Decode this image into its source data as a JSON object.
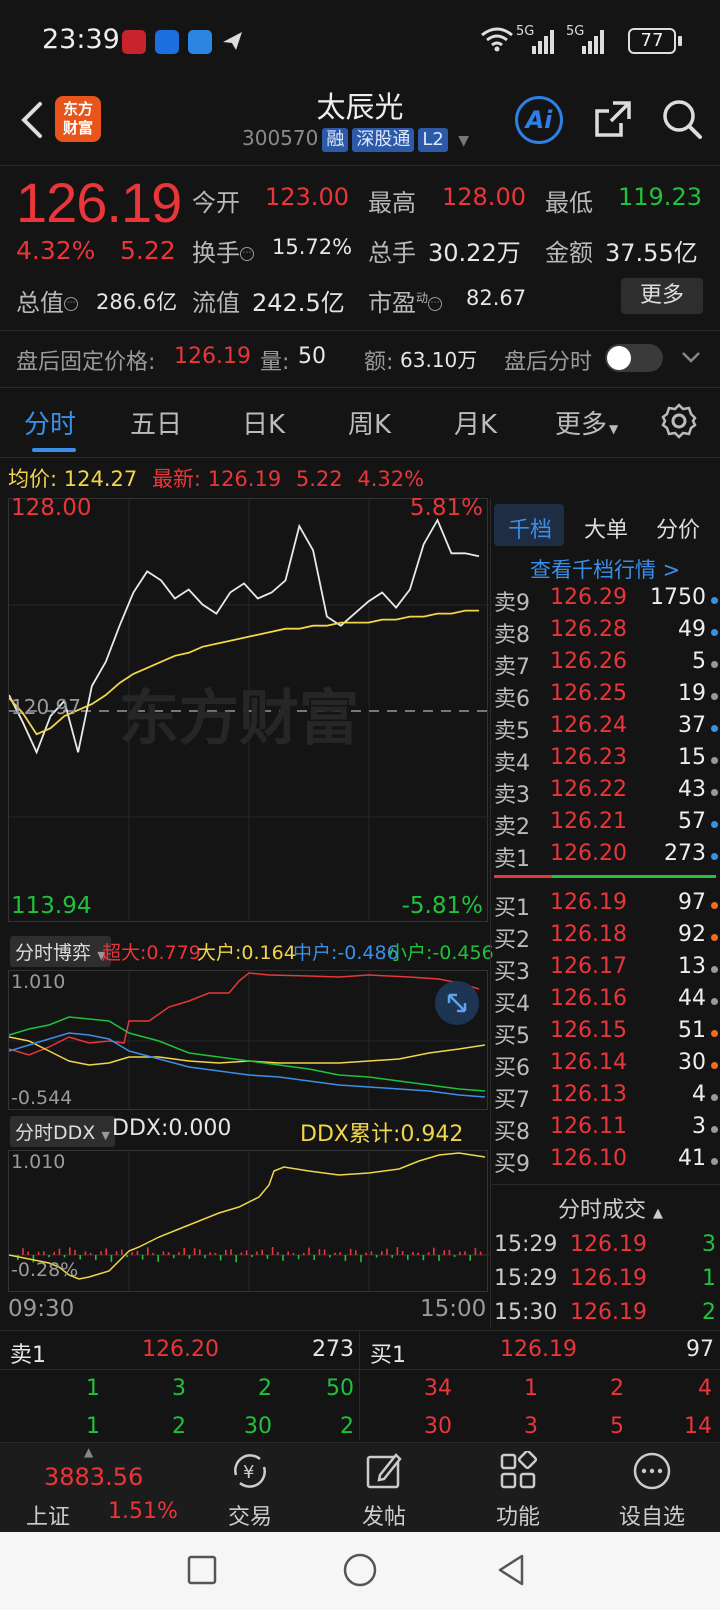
{
  "status_bar": {
    "time": "23:39",
    "battery": "77",
    "net1": "5G",
    "net2": "5G"
  },
  "header": {
    "logo_line1": "东方",
    "logo_line2": "财富",
    "name": "太辰光",
    "code": "300570",
    "tags": [
      "融",
      "深股通",
      "L2"
    ]
  },
  "quote": {
    "price": "126.19",
    "change_pct": "4.32%",
    "change_amt": "5.22",
    "open_label": "今开",
    "open": "123.00",
    "high_label": "最高",
    "high": "128.00",
    "low_label": "最低",
    "low": "119.23",
    "turnover_label": "换手",
    "turnover": "15.72%",
    "volume_label": "总手",
    "volume": "30.22万",
    "amount_label": "金额",
    "amount": "37.55亿",
    "mktcap_label": "总值",
    "mktcap": "286.6亿",
    "float_label": "流值",
    "float": "242.5亿",
    "pe_label": "市盈",
    "pe_sup": "动",
    "pe": "82.67",
    "more": "更多"
  },
  "after_hours": {
    "label": "盘后固定价格:",
    "price": "126.19",
    "vol_label": "量:",
    "vol": "50",
    "amt_label": "额:",
    "amt": "63.10万",
    "timeshare_label": "盘后分时"
  },
  "tabs": [
    "分时",
    "五日",
    "日K",
    "周K",
    "月K",
    "更多"
  ],
  "info_line": {
    "avg_label": "均价:",
    "avg": "124.27",
    "latest_label": "最新:",
    "latest": "126.19",
    "chg": "5.22",
    "pct": "4.32%"
  },
  "chart": {
    "top_price": "128.00",
    "top_pct": "5.81%",
    "mid_price": "120.97",
    "bottom_price": "113.94",
    "bottom_pct": "-5.81%",
    "watermark": "东方财富",
    "time_start": "09:30",
    "time_end": "15:00"
  },
  "chart_data": {
    "type": "line",
    "ylim": [
      113.94,
      128.0
    ],
    "series": [
      {
        "values": [
          121.5,
          120.6,
          119.6,
          120.8,
          121.3,
          119.6,
          121.8,
          122.6,
          123.8,
          124.9,
          125.6,
          125.3,
          124.7,
          125.0,
          124.5,
          124.2,
          124.9,
          125.2,
          124.7,
          124.9,
          125.3,
          127.1,
          126.3,
          124.1,
          123.8,
          124.2,
          124.6,
          124.9,
          124.4,
          125.0,
          126.5,
          127.3,
          126.2,
          126.2,
          126.1
        ]
      },
      {
        "values": [
          121.4,
          120.9,
          120.2,
          120.4,
          120.8,
          121.0,
          121.2,
          121.5,
          121.9,
          122.2,
          122.4,
          122.6,
          122.8,
          122.9,
          123.1,
          123.2,
          123.3,
          123.4,
          123.5,
          123.6,
          123.7,
          123.7,
          123.8,
          123.8,
          123.9,
          123.9,
          123.9,
          124.0,
          124.0,
          124.1,
          124.1,
          124.2,
          124.2,
          124.3,
          124.3
        ]
      }
    ]
  },
  "sub1": {
    "dropdown": "分时博弈",
    "legend": [
      {
        "label": "超大:",
        "value": "0.779",
        "color": "#e8363a"
      },
      {
        "label": "大户:",
        "value": "0.164",
        "color": "#f1d54a"
      },
      {
        "label": "中户:",
        "value": "-0.486",
        "color": "#3a8fe8"
      },
      {
        "label": "小户:",
        "value": "-0.456",
        "color": "#21c13c"
      }
    ],
    "top": "1.010",
    "bottom": "-0.544"
  },
  "sub2": {
    "dropdown": "分时DDX",
    "ddx_label": "DDX:",
    "ddx": "0.000",
    "ddx_cum_label": "DDX累计:",
    "ddx_cum": "0.942",
    "top": "1.010",
    "bottom": "-0.28%"
  },
  "orderbook": {
    "tabs": [
      "千档",
      "大单",
      "分价"
    ],
    "link": "查看千档行情 >",
    "asks": [
      {
        "label": "卖9",
        "price": "126.29",
        "vol": "1750",
        "dot": "#3a8fe8"
      },
      {
        "label": "卖8",
        "price": "126.28",
        "vol": "49",
        "dot": "#3a8fe8"
      },
      {
        "label": "卖7",
        "price": "126.26",
        "vol": "5",
        "dot": "#999999"
      },
      {
        "label": "卖6",
        "price": "126.25",
        "vol": "19",
        "dot": "#999999"
      },
      {
        "label": "卖5",
        "price": "126.24",
        "vol": "37",
        "dot": "#3a8fe8"
      },
      {
        "label": "卖4",
        "price": "126.23",
        "vol": "15",
        "dot": "#999999"
      },
      {
        "label": "卖3",
        "price": "126.22",
        "vol": "43",
        "dot": "#999999"
      },
      {
        "label": "卖2",
        "price": "126.21",
        "vol": "57",
        "dot": "#3a8fe8"
      },
      {
        "label": "卖1",
        "price": "126.20",
        "vol": "273",
        "dot": "#3a8fe8"
      }
    ],
    "bids": [
      {
        "label": "买1",
        "price": "126.19",
        "vol": "97",
        "dot": "#f26b21"
      },
      {
        "label": "买2",
        "price": "126.18",
        "vol": "92",
        "dot": "#f26b21"
      },
      {
        "label": "买3",
        "price": "126.17",
        "vol": "13",
        "dot": "#999999"
      },
      {
        "label": "买4",
        "price": "126.16",
        "vol": "44",
        "dot": "#999999"
      },
      {
        "label": "买5",
        "price": "126.15",
        "vol": "51",
        "dot": "#f26b21"
      },
      {
        "label": "买6",
        "price": "126.14",
        "vol": "30",
        "dot": "#f26b21"
      },
      {
        "label": "买7",
        "price": "126.13",
        "vol": "4",
        "dot": "#999999"
      },
      {
        "label": "买8",
        "price": "126.11",
        "vol": "3",
        "dot": "#999999"
      },
      {
        "label": "买9",
        "price": "126.10",
        "vol": "41",
        "dot": "#999999"
      }
    ],
    "trades_header": "分时成交",
    "trades": [
      {
        "time": "15:29",
        "price": "126.19",
        "vol": "3"
      },
      {
        "time": "15:29",
        "price": "126.19",
        "vol": "1"
      },
      {
        "time": "15:30",
        "price": "126.19",
        "vol": "2"
      }
    ]
  },
  "level1": {
    "sell_label": "卖1",
    "sell_price": "126.20",
    "sell_vol": "273",
    "buy_label": "买1",
    "buy_price": "126.19",
    "buy_vol": "97",
    "sell_queue": [
      [
        "1",
        "3",
        "2",
        "50"
      ],
      [
        "1",
        "2",
        "30",
        "2"
      ]
    ],
    "buy_queue": [
      [
        "34",
        "1",
        "2",
        "4"
      ],
      [
        "30",
        "3",
        "5",
        "14"
      ]
    ]
  },
  "bottom_nav": {
    "index_value": "3883.56",
    "index_name": "上证",
    "index_pct": "1.51%",
    "items": [
      "交易",
      "发帖",
      "功能",
      "设自选"
    ]
  }
}
